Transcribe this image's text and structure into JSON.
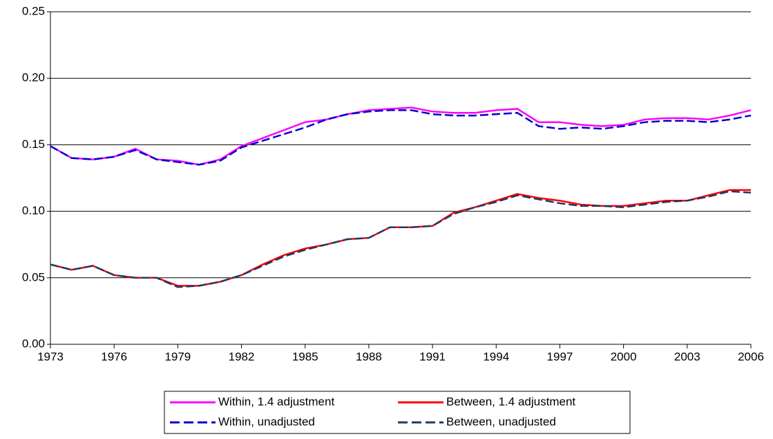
{
  "chart_data": {
    "type": "line",
    "x": [
      1973,
      1974,
      1975,
      1976,
      1977,
      1978,
      1979,
      1980,
      1981,
      1982,
      1983,
      1984,
      1985,
      1986,
      1987,
      1988,
      1989,
      1990,
      1991,
      1992,
      1993,
      1994,
      1995,
      1996,
      1997,
      1998,
      1999,
      2000,
      2001,
      2002,
      2003,
      2004,
      2005,
      2006
    ],
    "xlim": [
      1973,
      2006
    ],
    "xticks": [
      1973,
      1976,
      1979,
      1982,
      1985,
      1988,
      1991,
      1994,
      1997,
      2000,
      2003,
      2006
    ],
    "ylim": [
      0,
      0.25
    ],
    "yticks": [
      {
        "value": 0,
        "label": "0.00"
      },
      {
        "value": 0.05,
        "label": "0.05"
      },
      {
        "value": 0.1,
        "label": "0.10"
      },
      {
        "value": 0.15,
        "label": "0.15"
      },
      {
        "value": 0.2,
        "label": "0.20"
      },
      {
        "value": 0.25,
        "label": "0.25"
      }
    ],
    "grid": true,
    "legend": "bottom",
    "series": [
      {
        "name": "Within, 1.4 adjustment",
        "color": "#ff00ff",
        "dash": false,
        "values": [
          0.149,
          0.14,
          0.139,
          0.141,
          0.147,
          0.139,
          0.138,
          0.135,
          0.139,
          0.149,
          0.155,
          0.161,
          0.167,
          0.169,
          0.173,
          0.176,
          0.177,
          0.178,
          0.175,
          0.174,
          0.174,
          0.176,
          0.177,
          0.167,
          0.167,
          0.165,
          0.164,
          0.165,
          0.169,
          0.17,
          0.17,
          0.169,
          0.172,
          0.176
        ]
      },
      {
        "name": "Between, 1.4 adjustment",
        "color": "#ff0000",
        "dash": false,
        "values": [
          0.06,
          0.056,
          0.059,
          0.052,
          0.05,
          0.05,
          0.044,
          0.044,
          0.047,
          0.052,
          0.06,
          0.067,
          0.072,
          0.075,
          0.079,
          0.08,
          0.088,
          0.088,
          0.089,
          0.099,
          0.103,
          0.108,
          0.113,
          0.11,
          0.108,
          0.105,
          0.104,
          0.104,
          0.106,
          0.108,
          0.108,
          0.112,
          0.116,
          0.116
        ]
      },
      {
        "name": "Within, unadjusted",
        "color": "#0000cc",
        "dash": true,
        "values": [
          0.149,
          0.14,
          0.139,
          0.141,
          0.146,
          0.139,
          0.137,
          0.135,
          0.138,
          0.148,
          0.153,
          0.158,
          0.163,
          0.169,
          0.173,
          0.175,
          0.176,
          0.176,
          0.173,
          0.172,
          0.172,
          0.173,
          0.174,
          0.164,
          0.162,
          0.163,
          0.162,
          0.164,
          0.167,
          0.168,
          0.168,
          0.167,
          0.169,
          0.172
        ]
      },
      {
        "name": "Between, unadjusted",
        "color": "#1f3864",
        "dash": true,
        "values": [
          0.06,
          0.056,
          0.059,
          0.052,
          0.05,
          0.05,
          0.043,
          0.044,
          0.047,
          0.052,
          0.059,
          0.066,
          0.071,
          0.075,
          0.079,
          0.08,
          0.088,
          0.088,
          0.089,
          0.098,
          0.103,
          0.107,
          0.112,
          0.109,
          0.106,
          0.104,
          0.104,
          0.103,
          0.105,
          0.107,
          0.108,
          0.111,
          0.115,
          0.114
        ]
      }
    ]
  }
}
